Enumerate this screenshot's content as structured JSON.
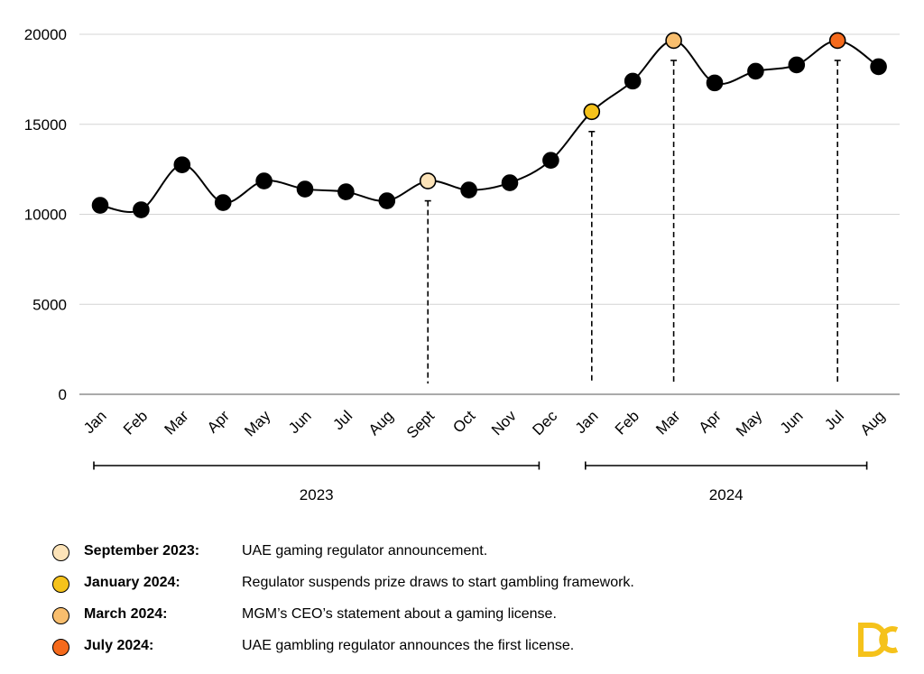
{
  "chart_data": {
    "type": "line",
    "categories": [
      "Jan",
      "Feb",
      "Mar",
      "Apr",
      "May",
      "Jun",
      "Jul",
      "Aug",
      "Sept",
      "Oct",
      "Nov",
      "Dec",
      "Jan",
      "Feb",
      "Mar",
      "Apr",
      "May",
      "Jun",
      "Jul",
      "Aug"
    ],
    "values": [
      10500,
      10250,
      12750,
      10650,
      11850,
      11400,
      11250,
      10750,
      11850,
      11350,
      11750,
      13000,
      15700,
      17400,
      19650,
      17300,
      17950,
      18300,
      19650,
      18200
    ],
    "ylim": [
      0,
      20000
    ],
    "yticks": [
      0,
      5000,
      10000,
      15000,
      20000
    ],
    "grid": "horizontal",
    "year_groups": [
      {
        "label": "2023",
        "from": 0,
        "to": 11
      },
      {
        "label": "2024",
        "from": 12,
        "to": 19
      }
    ],
    "highlights": [
      {
        "index": 8,
        "color": "#FCE3B8"
      },
      {
        "index": 12,
        "color": "#F5C21B"
      },
      {
        "index": 14,
        "color": "#F8BE6E"
      },
      {
        "index": 18,
        "color": "#F56A1C"
      }
    ],
    "default_point_color": "#000000",
    "line_color": "#000000"
  },
  "legend": [
    {
      "date": "September 2023:",
      "text": "UAE gaming regulator announcement.",
      "color": "#FCE3B8"
    },
    {
      "date": "January 2024:",
      "text": "Regulator suspends prize draws to start gambling framework.",
      "color": "#F5C21B"
    },
    {
      "date": "March 2024:",
      "text": "MGM’s CEO’s statement about a gaming license.",
      "color": "#F8BE6E"
    },
    {
      "date": "July 2024:",
      "text": "UAE gambling regulator announces the first license.",
      "color": "#F56A1C"
    }
  ],
  "logo": {
    "name": "brand-logo",
    "color": "#F5C21B"
  }
}
